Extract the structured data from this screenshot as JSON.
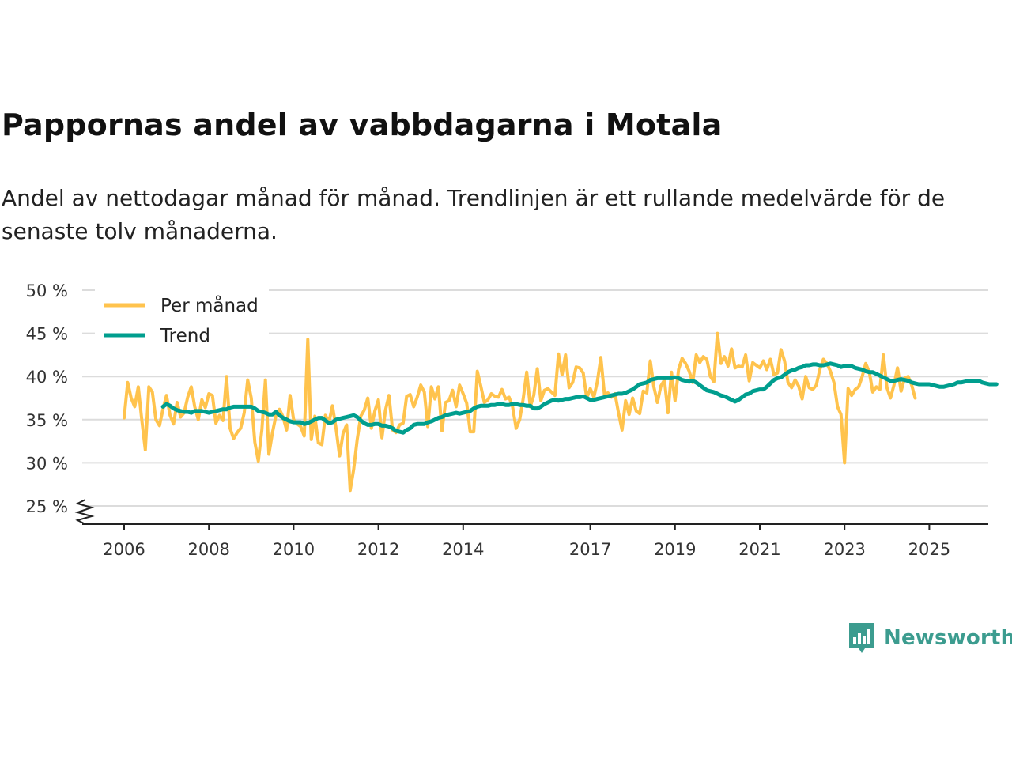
{
  "header": {
    "title": "Pappornas andel av vabbdagarna i Motala",
    "subtitle": "Andel av nettodagar månad för månad. Trendlinjen är ett rullande medelvärde för de senaste tolv månaderna."
  },
  "brand": {
    "name": "Newsworthy",
    "icon": "newsworthy-logo-icon",
    "color": "#3c9c8f"
  },
  "chart_data": {
    "type": "line",
    "title": "Pappornas andel av vabbdagarna i Motala",
    "xlabel": "",
    "ylabel": "",
    "y_ticks": [
      25,
      30,
      35,
      40,
      45,
      50
    ],
    "y_tick_labels": [
      "25 %",
      "30 %",
      "35 %",
      "40 %",
      "45 %",
      "50 %"
    ],
    "ylim": [
      25,
      50
    ],
    "y_axis_break": true,
    "x_ticks": [
      2006,
      2008,
      2010,
      2012,
      2014,
      2017,
      2019,
      2021,
      2023,
      2025
    ],
    "x_tick_labels": [
      "2006",
      "2008",
      "2010",
      "2012",
      "2014",
      "2017",
      "2019",
      "2021",
      "2023",
      "2025"
    ],
    "xlim": [
      2005.0,
      2026.3
    ],
    "grid": true,
    "legend_position": "top-left",
    "series": [
      {
        "name": "Per månad",
        "color": "#ffc34d",
        "x_start": 2006.0,
        "step": 0.0833333,
        "values": [
          35.2,
          39.3,
          37.5,
          36.5,
          38.8,
          35.0,
          31.5,
          38.8,
          38.2,
          35.0,
          34.3,
          36.2,
          37.8,
          35.5,
          34.5,
          37.0,
          35.3,
          35.8,
          37.6,
          38.8,
          36.5,
          35.0,
          37.3,
          36.4,
          38.0,
          37.8,
          34.6,
          35.5,
          34.9,
          40.0,
          34.0,
          32.8,
          33.5,
          34.0,
          35.8,
          39.6,
          37.5,
          32.4,
          30.2,
          33.8,
          39.6,
          31.0,
          33.5,
          35.5,
          36.2,
          35.3,
          33.8,
          37.8,
          35.0,
          34.5,
          34.2,
          33.1,
          44.3,
          32.7,
          35.4,
          32.3,
          32.1,
          35.5,
          34.7,
          36.6,
          34.0,
          30.8,
          33.4,
          34.4,
          26.8,
          29.2,
          32.7,
          35.4,
          36.1,
          37.5,
          34.0,
          36.0,
          37.3,
          32.9,
          36.1,
          37.8,
          33.8,
          33.5,
          34.4,
          34.6,
          37.7,
          37.9,
          36.5,
          37.6,
          39.0,
          38.2,
          34.2,
          38.8,
          37.4,
          38.8,
          33.7,
          37.0,
          37.2,
          38.4,
          36.5,
          39.0,
          38.0,
          36.9,
          33.6,
          33.6,
          40.6,
          38.9,
          37.0,
          37.3,
          38.0,
          37.7,
          37.6,
          38.5,
          37.4,
          37.6,
          36.5,
          34.0,
          35.0,
          37.4,
          40.5,
          36.5,
          37.8,
          40.9,
          37.2,
          38.4,
          38.6,
          38.2,
          37.8,
          42.6,
          40.2,
          42.5,
          38.7,
          39.3,
          41.1,
          41.0,
          40.4,
          37.5,
          38.6,
          37.6,
          39.4,
          42.2,
          37.9,
          38.1,
          37.6,
          38.0,
          35.8,
          33.8,
          37.2,
          35.6,
          37.5,
          36.0,
          35.7,
          38.3,
          38.1,
          41.8,
          38.8,
          37.0,
          38.9,
          39.6,
          35.8,
          40.5,
          37.2,
          40.8,
          42.1,
          41.5,
          40.6,
          39.3,
          42.5,
          41.6,
          42.3,
          42.0,
          40.0,
          39.4,
          45.0,
          41.5,
          42.3,
          41.2,
          43.2,
          41.0,
          41.2,
          41.1,
          42.5,
          39.5,
          41.6,
          41.3,
          41.0,
          41.8,
          40.8,
          42.0,
          40.2,
          40.4,
          43.1,
          41.8,
          39.3,
          38.7,
          39.6,
          38.9,
          37.4,
          40.0,
          38.7,
          38.5,
          39.0,
          40.8,
          42.0,
          41.5,
          40.6,
          39.3,
          36.5,
          35.6,
          30.0,
          38.6,
          37.8,
          38.5,
          38.8,
          40.0,
          41.5,
          40.5,
          38.2,
          38.8,
          38.5,
          42.5,
          38.7,
          37.5,
          39.0,
          41.0,
          38.3,
          39.8,
          40.0,
          39.0,
          37.5
        ]
      },
      {
        "name": "Trend",
        "color": "#009e8e",
        "x_start": 2006.9167,
        "step": 0.0833333,
        "values": [
          36.5,
          36.8,
          36.6,
          36.3,
          36.1,
          36.0,
          35.9,
          35.9,
          35.8,
          36.0,
          36.0,
          36.0,
          35.9,
          35.8,
          35.9,
          36.0,
          36.1,
          36.2,
          36.2,
          36.4,
          36.5,
          36.5,
          36.5,
          36.5,
          36.5,
          36.5,
          36.3,
          36.0,
          35.9,
          35.8,
          35.6,
          35.6,
          35.9,
          35.5,
          35.2,
          35.0,
          34.8,
          34.7,
          34.7,
          34.7,
          34.5,
          34.6,
          34.8,
          35.0,
          35.2,
          35.2,
          34.9,
          34.6,
          34.7,
          35.0,
          35.1,
          35.2,
          35.3,
          35.4,
          35.5,
          35.3,
          34.9,
          34.6,
          34.4,
          34.4,
          34.5,
          34.5,
          34.3,
          34.3,
          34.2,
          34.0,
          33.7,
          33.6,
          33.5,
          33.8,
          34.0,
          34.4,
          34.5,
          34.5,
          34.5,
          34.7,
          34.8,
          35.0,
          35.2,
          35.3,
          35.5,
          35.6,
          35.7,
          35.8,
          35.7,
          35.8,
          35.9,
          36.0,
          36.3,
          36.5,
          36.6,
          36.6,
          36.6,
          36.7,
          36.7,
          36.8,
          36.8,
          36.7,
          36.7,
          36.8,
          36.8,
          36.7,
          36.7,
          36.6,
          36.6,
          36.3,
          36.3,
          36.5,
          36.8,
          37.0,
          37.2,
          37.3,
          37.2,
          37.3,
          37.4,
          37.4,
          37.5,
          37.6,
          37.6,
          37.7,
          37.5,
          37.3,
          37.3,
          37.4,
          37.5,
          37.6,
          37.7,
          37.8,
          37.9,
          38.0,
          38.0,
          38.1,
          38.3,
          38.5,
          38.8,
          39.1,
          39.2,
          39.3,
          39.6,
          39.7,
          39.8,
          39.8,
          39.8,
          39.8,
          39.8,
          39.9,
          39.8,
          39.6,
          39.5,
          39.4,
          39.5,
          39.3,
          39.0,
          38.7,
          38.4,
          38.3,
          38.2,
          38.0,
          37.8,
          37.7,
          37.5,
          37.3,
          37.1,
          37.3,
          37.6,
          37.9,
          38.0,
          38.3,
          38.4,
          38.5,
          38.5,
          38.8,
          39.2,
          39.6,
          39.8,
          39.9,
          40.2,
          40.5,
          40.7,
          40.8,
          41.0,
          41.1,
          41.3,
          41.3,
          41.4,
          41.4,
          41.3,
          41.3,
          41.4,
          41.5,
          41.4,
          41.3,
          41.1,
          41.2,
          41.2,
          41.2,
          41.0,
          40.9,
          40.8,
          40.6,
          40.5,
          40.5,
          40.3,
          40.1,
          39.9,
          39.7,
          39.5,
          39.5,
          39.6,
          39.7,
          39.6,
          39.5,
          39.3,
          39.2,
          39.1,
          39.1,
          39.1,
          39.1,
          39.0,
          38.9,
          38.8,
          38.8,
          38.9,
          39.0,
          39.1,
          39.3,
          39.3,
          39.4,
          39.5,
          39.5,
          39.5,
          39.5,
          39.3,
          39.2,
          39.1,
          39.1,
          39.1
        ]
      }
    ]
  }
}
